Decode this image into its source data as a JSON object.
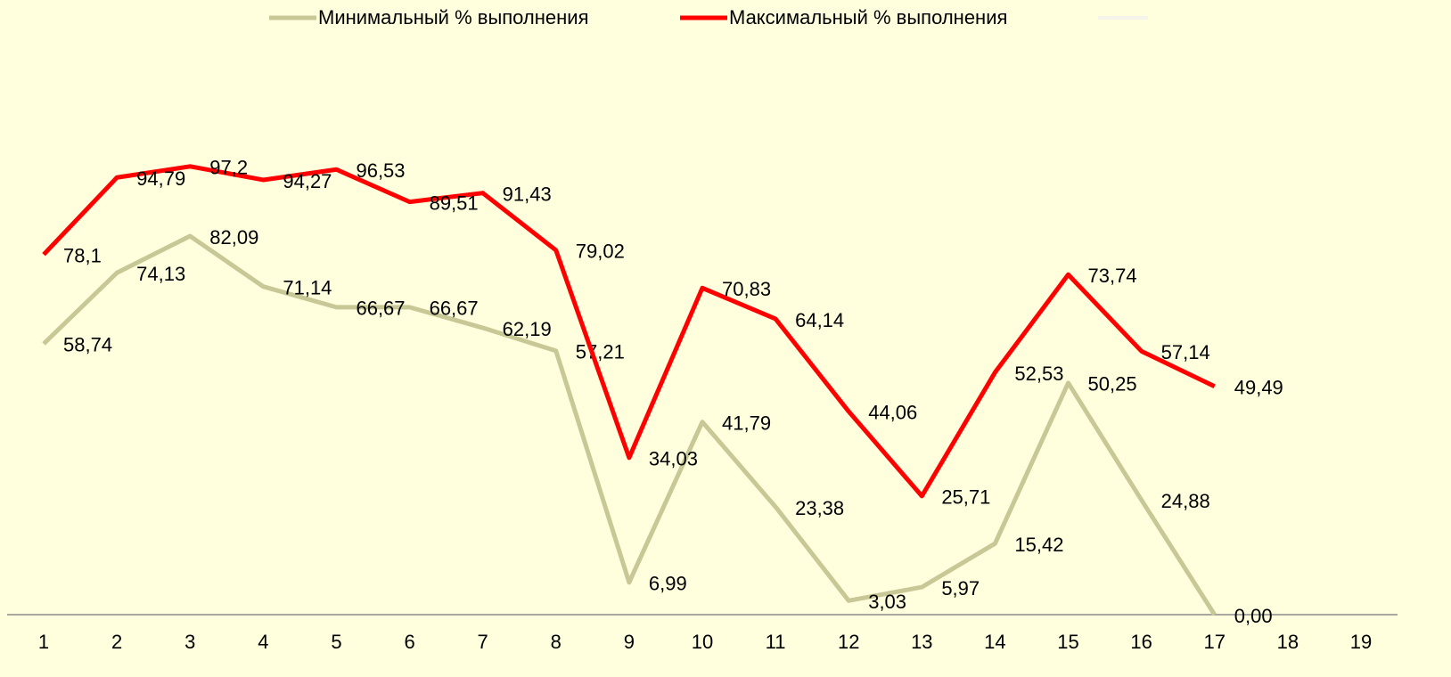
{
  "chart_data": {
    "type": "line",
    "categories": [
      "1",
      "2",
      "3",
      "4",
      "5",
      "6",
      "7",
      "8",
      "9",
      "10",
      "11",
      "12",
      "13",
      "14",
      "15",
      "16",
      "17",
      "18",
      "19"
    ],
    "ylim": [
      0,
      130
    ],
    "series": [
      {
        "name": "Минимальный % выполнения",
        "color": "#c8c796",
        "values": [
          58.74,
          74.13,
          82.09,
          71.14,
          66.67,
          66.67,
          62.19,
          57.21,
          6.99,
          41.79,
          23.38,
          3.03,
          5.97,
          15.42,
          50.25,
          24.88,
          0.0,
          null,
          null
        ],
        "value_labels": [
          "58,74",
          "74,13",
          "82,09",
          "71,14",
          "66,67",
          "66,67",
          "62,19",
          "57,21",
          "6,99",
          "41,79",
          "23,38",
          "3,03",
          "5,97",
          "15,42",
          "50,25",
          "24,88",
          "0,00",
          null,
          null
        ]
      },
      {
        "name": "Максимальный % выполнения",
        "color": "#ff0000",
        "values": [
          78.1,
          94.79,
          97.2,
          94.27,
          96.53,
          89.51,
          91.43,
          79.02,
          34.03,
          70.83,
          64.14,
          44.06,
          25.71,
          52.53,
          73.74,
          57.14,
          49.49,
          null,
          null
        ],
        "value_labels": [
          "78,1",
          "94,79",
          "97,2",
          "94,27",
          "96,53",
          "89,51",
          "91,43",
          "79,02",
          "34,03",
          "70,83",
          "64,14",
          "44,06",
          "25,71",
          "52,53",
          "73,74",
          "57,14",
          "49,49",
          null,
          null
        ]
      }
    ]
  }
}
